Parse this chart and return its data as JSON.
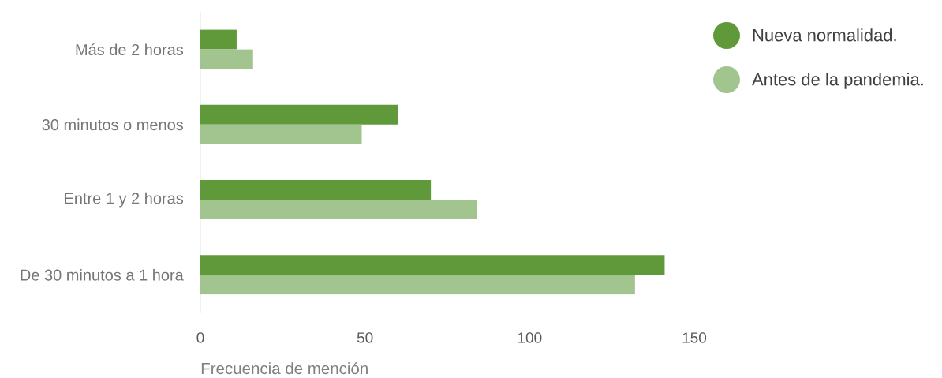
{
  "chart_data": {
    "type": "bar",
    "orientation": "horizontal",
    "categories": [
      "Más de 2 horas",
      "30 minutos o menos",
      "Entre 1 y 2 horas",
      "De 30 minutos a 1 hora"
    ],
    "series": [
      {
        "name": "Nueva normalidad.",
        "color": "#5f993a",
        "values": [
          11,
          60,
          70,
          141
        ]
      },
      {
        "name": "Antes de la pandemia.",
        "color": "#a2c48e",
        "values": [
          16,
          49,
          84,
          132
        ]
      }
    ],
    "xlabel": "Frecuencia de mención",
    "xlim": [
      0,
      150
    ],
    "xticks": [
      0,
      50,
      100,
      150
    ],
    "legend": "top right"
  }
}
